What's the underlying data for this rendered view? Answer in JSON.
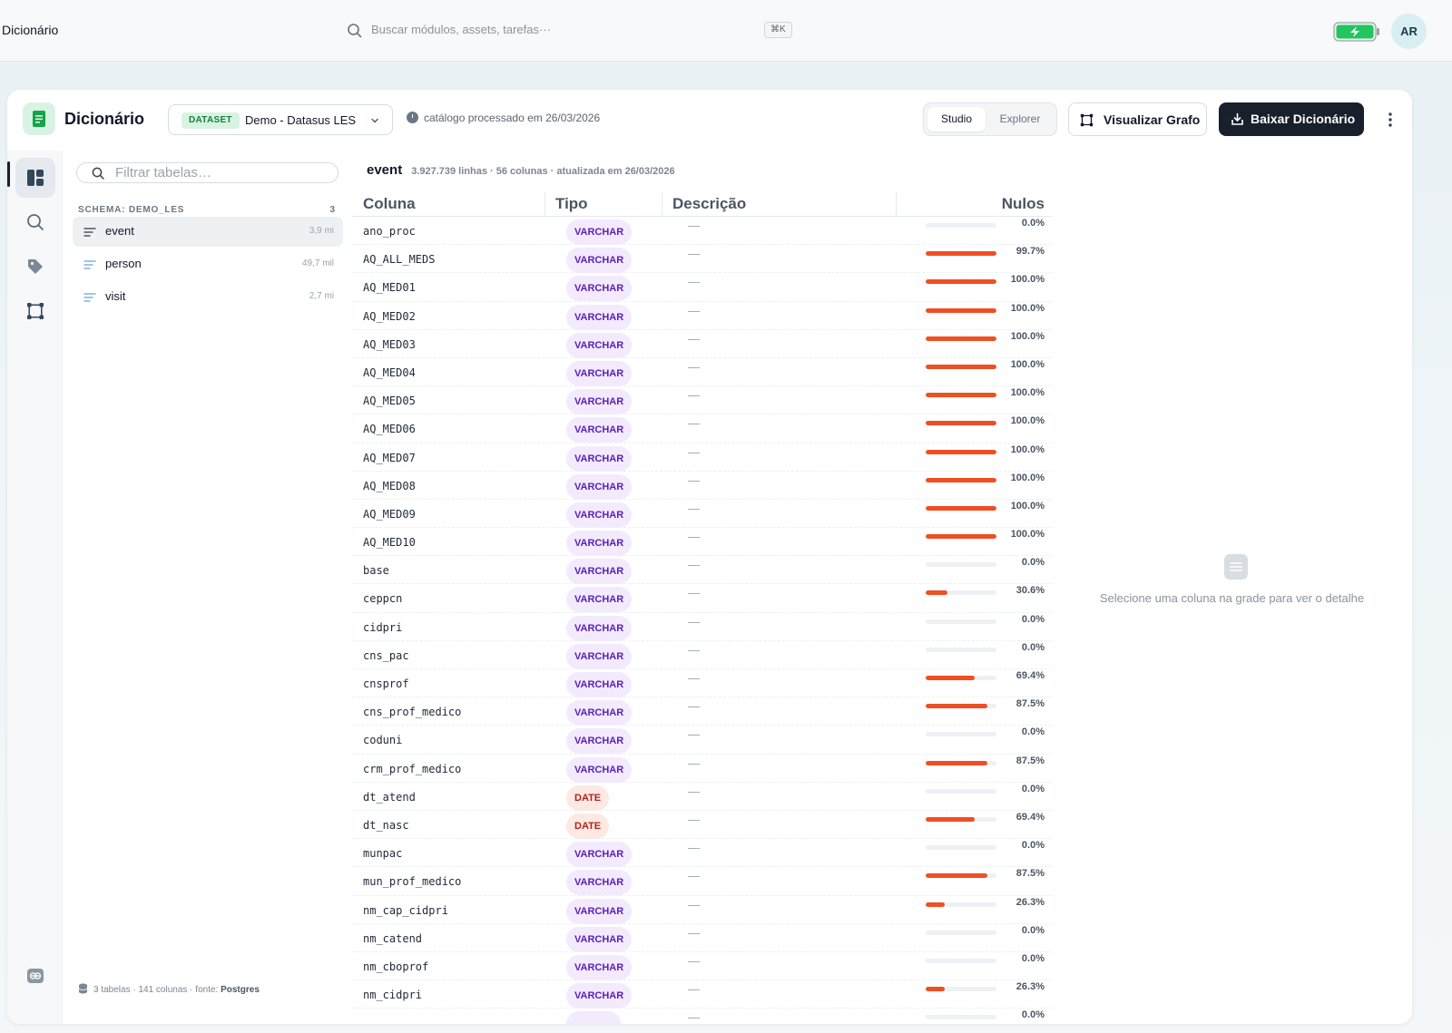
{
  "topbar": {
    "app_title": "Dicionário",
    "search_placeholder": "Buscar módulos, assets, tarefas···",
    "shortcut": "⌘K",
    "avatar_initials": "AR",
    "battery_color": "#22c55e"
  },
  "header": {
    "title": "Dicionário",
    "dataset_tag": "DATASET",
    "dataset_value": "Demo - Datasus LES",
    "processed_text": "catálogo processado em 26/03/2026",
    "view_modes": [
      "Studio",
      "Explorer"
    ],
    "active_view": "Studio",
    "graph_button": "Visualizar Grafo",
    "download_button": "Baixar Dicionário"
  },
  "rail": {
    "items": [
      "layout-icon",
      "search-icon",
      "tag-icon",
      "graph-icon",
      "link-icon"
    ],
    "active": "layout-icon"
  },
  "tables_panel": {
    "filter_placeholder": "Filtrar tabelas…",
    "schema_label": "SCHEMA: DEMO_LES",
    "schema_count": "3",
    "tables": [
      {
        "name": "event",
        "size": "3,9 mi"
      },
      {
        "name": "person",
        "size": "49,7 mil"
      },
      {
        "name": "visit",
        "size": "2,7 mi"
      }
    ],
    "active_table": "event",
    "footer_prefix": "3 tabelas · 141 colunas · fonte: ",
    "footer_source": "Postgres"
  },
  "grid": {
    "table_name": "event",
    "table_meta": "3.927.739 linhas · 56 colunas · atualizada em 26/03/2026",
    "headers": {
      "column": "Coluna",
      "type": "Tipo",
      "description": "Descrição",
      "nulls": "Nulos"
    },
    "null_bar_color": "#f04e23",
    "rows": [
      {
        "column": "ano_proc",
        "type": "VARCHAR",
        "description": "—",
        "nulls_pct": 0.0,
        "nulls_label": "0.0%"
      },
      {
        "column": "AQ_ALL_MEDS",
        "type": "VARCHAR",
        "description": "—",
        "nulls_pct": 99.7,
        "nulls_label": "99.7%"
      },
      {
        "column": "AQ_MED01",
        "type": "VARCHAR",
        "description": "—",
        "nulls_pct": 100.0,
        "nulls_label": "100.0%"
      },
      {
        "column": "AQ_MED02",
        "type": "VARCHAR",
        "description": "—",
        "nulls_pct": 100.0,
        "nulls_label": "100.0%"
      },
      {
        "column": "AQ_MED03",
        "type": "VARCHAR",
        "description": "—",
        "nulls_pct": 100.0,
        "nulls_label": "100.0%"
      },
      {
        "column": "AQ_MED04",
        "type": "VARCHAR",
        "description": "—",
        "nulls_pct": 100.0,
        "nulls_label": "100.0%"
      },
      {
        "column": "AQ_MED05",
        "type": "VARCHAR",
        "description": "—",
        "nulls_pct": 100.0,
        "nulls_label": "100.0%"
      },
      {
        "column": "AQ_MED06",
        "type": "VARCHAR",
        "description": "—",
        "nulls_pct": 100.0,
        "nulls_label": "100.0%"
      },
      {
        "column": "AQ_MED07",
        "type": "VARCHAR",
        "description": "—",
        "nulls_pct": 100.0,
        "nulls_label": "100.0%"
      },
      {
        "column": "AQ_MED08",
        "type": "VARCHAR",
        "description": "—",
        "nulls_pct": 100.0,
        "nulls_label": "100.0%"
      },
      {
        "column": "AQ_MED09",
        "type": "VARCHAR",
        "description": "—",
        "nulls_pct": 100.0,
        "nulls_label": "100.0%"
      },
      {
        "column": "AQ_MED10",
        "type": "VARCHAR",
        "description": "—",
        "nulls_pct": 100.0,
        "nulls_label": "100.0%"
      },
      {
        "column": "base",
        "type": "VARCHAR",
        "description": "—",
        "nulls_pct": 0.0,
        "nulls_label": "0.0%"
      },
      {
        "column": "ceppcn",
        "type": "VARCHAR",
        "description": "—",
        "nulls_pct": 30.6,
        "nulls_label": "30.6%"
      },
      {
        "column": "cidpri",
        "type": "VARCHAR",
        "description": "—",
        "nulls_pct": 0.0,
        "nulls_label": "0.0%"
      },
      {
        "column": "cns_pac",
        "type": "VARCHAR",
        "description": "—",
        "nulls_pct": 0.0,
        "nulls_label": "0.0%"
      },
      {
        "column": "cnsprof",
        "type": "VARCHAR",
        "description": "—",
        "nulls_pct": 69.4,
        "nulls_label": "69.4%"
      },
      {
        "column": "cns_prof_medico",
        "type": "VARCHAR",
        "description": "—",
        "nulls_pct": 87.5,
        "nulls_label": "87.5%"
      },
      {
        "column": "coduni",
        "type": "VARCHAR",
        "description": "—",
        "nulls_pct": 0.0,
        "nulls_label": "0.0%"
      },
      {
        "column": "crm_prof_medico",
        "type": "VARCHAR",
        "description": "—",
        "nulls_pct": 87.5,
        "nulls_label": "87.5%"
      },
      {
        "column": "dt_atend",
        "type": "DATE",
        "description": "—",
        "nulls_pct": 0.0,
        "nulls_label": "0.0%"
      },
      {
        "column": "dt_nasc",
        "type": "DATE",
        "description": "—",
        "nulls_pct": 69.4,
        "nulls_label": "69.4%"
      },
      {
        "column": "munpac",
        "type": "VARCHAR",
        "description": "—",
        "nulls_pct": 0.0,
        "nulls_label": "0.0%"
      },
      {
        "column": "mun_prof_medico",
        "type": "VARCHAR",
        "description": "—",
        "nulls_pct": 87.5,
        "nulls_label": "87.5%"
      },
      {
        "column": "nm_cap_cidpri",
        "type": "VARCHAR",
        "description": "—",
        "nulls_pct": 26.3,
        "nulls_label": "26.3%"
      },
      {
        "column": "nm_catend",
        "type": "VARCHAR",
        "description": "—",
        "nulls_pct": 0.0,
        "nulls_label": "0.0%"
      },
      {
        "column": "nm_cboprof",
        "type": "VARCHAR",
        "description": "—",
        "nulls_pct": 0.0,
        "nulls_label": "0.0%"
      },
      {
        "column": "nm_cidpri",
        "type": "VARCHAR",
        "description": "—",
        "nulls_pct": 26.3,
        "nulls_label": "26.3%"
      },
      {
        "column": "",
        "type": "",
        "description": "—",
        "nulls_pct": 0.0,
        "nulls_label": "0.0%"
      }
    ]
  },
  "detail": {
    "empty_text": "Selecione uma coluna na grade para ver o detalhe"
  }
}
